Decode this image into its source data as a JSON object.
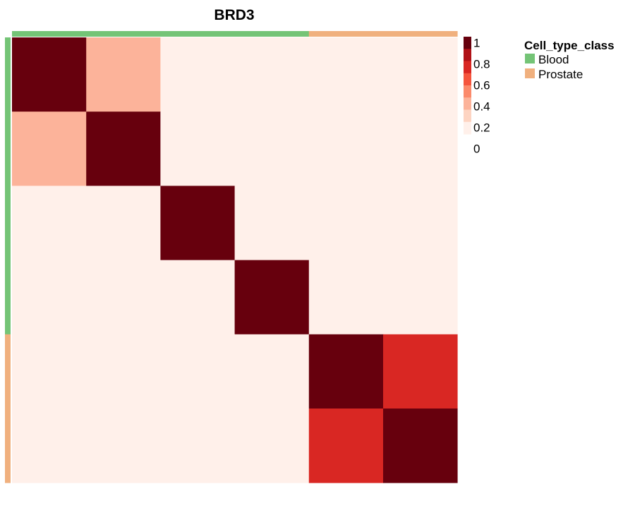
{
  "chart_data": {
    "type": "heatmap",
    "title": "BRD3",
    "matrix": [
      [
        1.0,
        0.3,
        0.0,
        0.0,
        0.0,
        0.0
      ],
      [
        0.3,
        1.0,
        0.0,
        0.0,
        0.0,
        0.0
      ],
      [
        0.0,
        0.0,
        1.0,
        0.0,
        0.0,
        0.0
      ],
      [
        0.0,
        0.0,
        0.0,
        1.0,
        0.0,
        0.0
      ],
      [
        0.0,
        0.0,
        0.0,
        0.0,
        1.0,
        0.65
      ],
      [
        0.0,
        0.0,
        0.0,
        0.0,
        0.65,
        1.0
      ]
    ],
    "annotation": {
      "column": [
        "Blood",
        "Blood",
        "Blood",
        "Blood",
        "Prostate",
        "Prostate"
      ],
      "row": [
        "Blood",
        "Blood",
        "Blood",
        "Blood",
        "Prostate",
        "Prostate"
      ]
    },
    "colorbar": {
      "range": [
        0,
        1
      ],
      "ticks": [
        "1",
        "0.8",
        "0.6",
        "0.4",
        "0.2",
        "0"
      ],
      "colors": [
        "#fff0ea",
        "#fdd4c2",
        "#fcb39a",
        "#fb8a6b",
        "#f5553d",
        "#d92723",
        "#b01217",
        "#67000d"
      ]
    },
    "legend": {
      "title": "Cell_type_class",
      "position": "right",
      "items": [
        {
          "label": "Blood",
          "color": "#74c476"
        },
        {
          "label": "Prostate",
          "color": "#f0b07e"
        }
      ]
    }
  }
}
